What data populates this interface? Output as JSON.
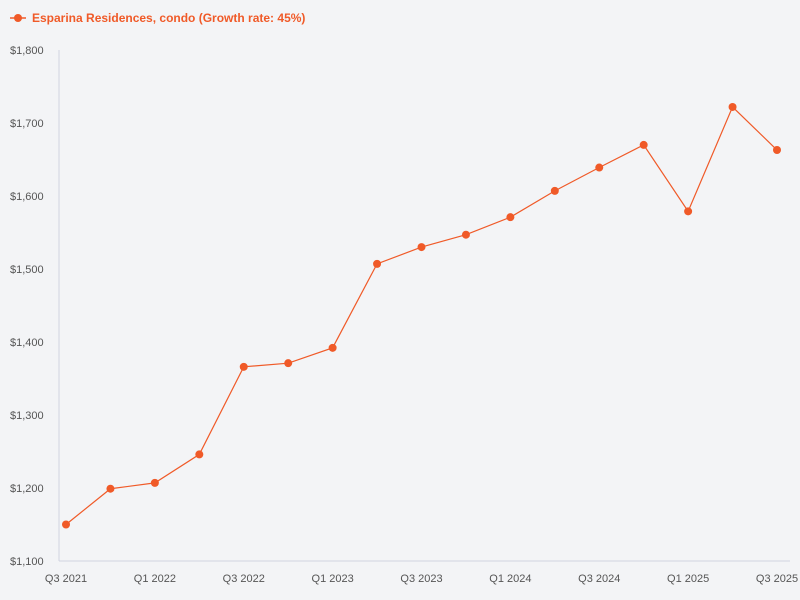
{
  "chart_data": {
    "type": "line",
    "title": "",
    "xlabel": "",
    "ylabel": "",
    "legend_position": "top-left",
    "grid": false,
    "x": [
      "Q3 2021",
      "Q4 2021",
      "Q1 2022",
      "Q2 2022",
      "Q3 2022",
      "Q4 2022",
      "Q1 2023",
      "Q2 2023",
      "Q3 2023",
      "Q4 2023",
      "Q1 2024",
      "Q2 2024",
      "Q3 2024",
      "Q4 2024",
      "Q1 2025",
      "Q2 2025",
      "Q3 2025"
    ],
    "x_tick_labels": [
      "Q3 2021",
      "Q1 2022",
      "Q3 2022",
      "Q1 2023",
      "Q3 2023",
      "Q1 2024",
      "Q3 2024",
      "Q1 2025",
      "Q3 2025"
    ],
    "ylim": [
      1100,
      1800
    ],
    "y_ticks": [
      1100,
      1200,
      1300,
      1400,
      1500,
      1600,
      1700,
      1800
    ],
    "y_tick_labels": [
      "$1,100",
      "$1,200",
      "$1,300",
      "$1,400",
      "$1,500",
      "$1,600",
      "$1,700",
      "$1,800"
    ],
    "series": [
      {
        "name": "Esparina Residences, condo (Growth rate: 45%)",
        "color": "#f05a28",
        "values": [
          1150,
          1199,
          1207,
          1246,
          1366,
          1371,
          1392,
          1507,
          1530,
          1547,
          1571,
          1607,
          1639,
          1670,
          1579,
          1722,
          1663
        ]
      }
    ]
  }
}
